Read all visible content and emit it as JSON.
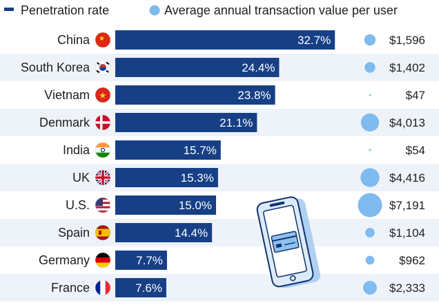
{
  "chart_data": {
    "type": "bar",
    "orientation": "horizontal",
    "title": "",
    "legend": [
      {
        "name": "Penetration rate",
        "color": "#163f86",
        "marker": "dash"
      },
      {
        "name": "Average annual transaction value per user",
        "color": "#7fbbee",
        "marker": "circle"
      }
    ],
    "legend_position": "top",
    "categories": [
      "China",
      "South Korea",
      "Vietnam",
      "Denmark",
      "India",
      "UK",
      "U.S.",
      "Spain",
      "Germany",
      "France"
    ],
    "series": [
      {
        "name": "Penetration rate",
        "unit": "%",
        "values": [
          32.7,
          24.4,
          23.8,
          21.1,
          15.7,
          15.3,
          15.0,
          14.4,
          7.7,
          7.6
        ],
        "labels": [
          "32.7%",
          "24.4%",
          "23.8%",
          "21.1%",
          "15.7%",
          "15.3%",
          "15.0%",
          "14.4%",
          "7.7%",
          "7.6%"
        ]
      },
      {
        "name": "Average annual transaction value per user",
        "unit": "USD",
        "values": [
          1596,
          1402,
          47,
          4013,
          54,
          4416,
          7191,
          1104,
          962,
          2333
        ],
        "labels": [
          "$1,596",
          "$1,402",
          "$47",
          "$4,013",
          "$54",
          "$4,416",
          "$7,191",
          "$1,104",
          "$962",
          "$2,333"
        ]
      }
    ],
    "xlim": [
      0,
      33.5
    ]
  },
  "colors": {
    "bar": "#163f86",
    "bubble": "#7fbbee",
    "row_band": "#eef3fa",
    "illustration": "#5a9fe0",
    "illustration_shadow": "#9cc6f0"
  },
  "flags": [
    "china-flag-icon",
    "south-korea-flag-icon",
    "vietnam-flag-icon",
    "denmark-flag-icon",
    "india-flag-icon",
    "uk-flag-icon",
    "us-flag-icon",
    "spain-flag-icon",
    "germany-flag-icon",
    "france-flag-icon"
  ],
  "illustration": "smartphone-payment-icon"
}
